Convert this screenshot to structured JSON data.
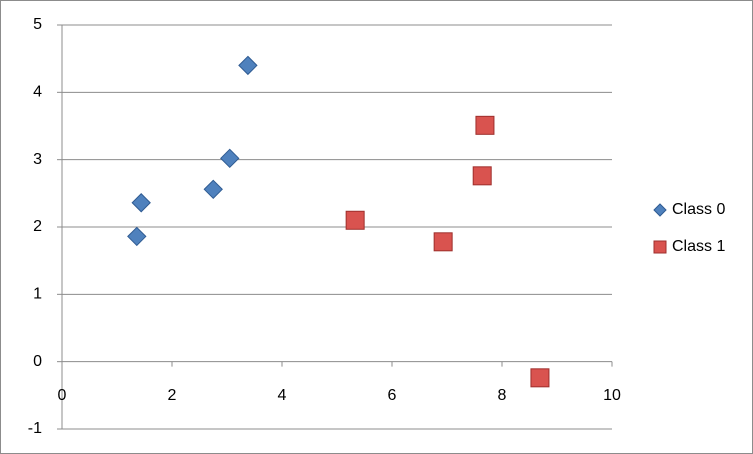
{
  "chart_data": {
    "type": "scatter",
    "series": [
      {
        "name": "Class 0",
        "color": "#4f81bd",
        "marker": "diamond",
        "x": [
          1.44,
          1.36,
          2.75,
          3.05,
          3.38
        ],
        "values": [
          2.36,
          1.86,
          2.56,
          3.02,
          4.4
        ]
      },
      {
        "name": "Class 1",
        "color": "#d9534f",
        "marker": "square",
        "x": [
          5.33,
          6.93,
          7.64,
          7.69,
          8.69
        ],
        "values": [
          2.1,
          1.78,
          2.76,
          3.51,
          -0.24
        ]
      }
    ],
    "xlim": [
      0,
      10
    ],
    "xticks": [
      0,
      2,
      4,
      6,
      8,
      10
    ],
    "ylim": [
      -1,
      5
    ],
    "yticks": [
      -1,
      0,
      1,
      2,
      3,
      4,
      5
    ],
    "grid": true,
    "legend": "right"
  }
}
